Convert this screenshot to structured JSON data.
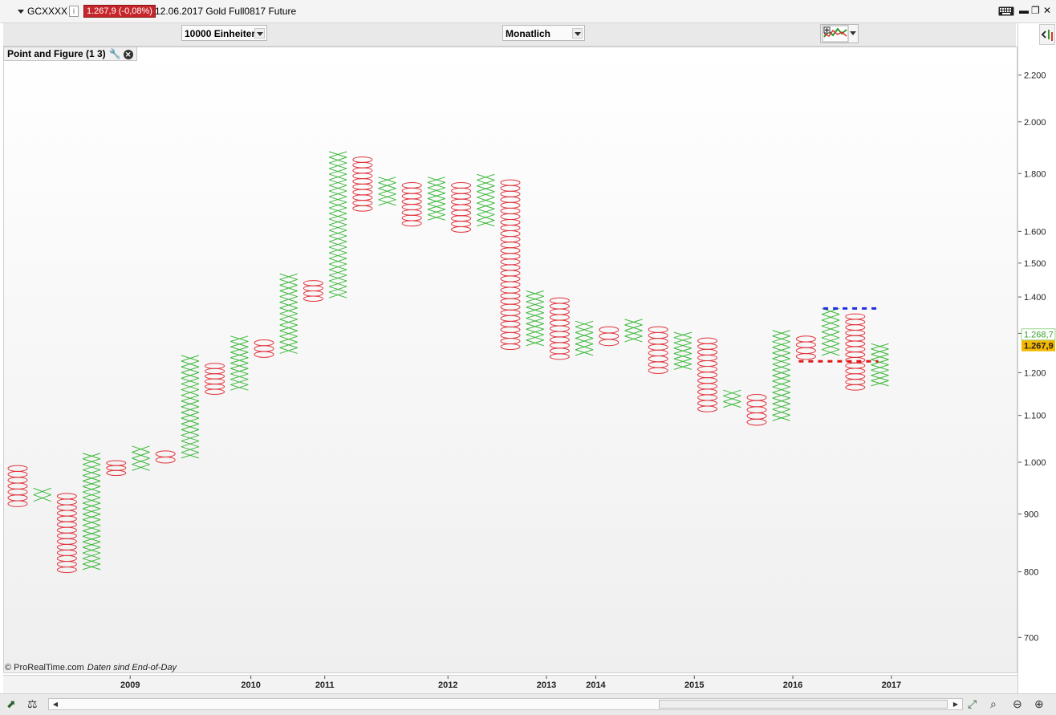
{
  "titlebar": {
    "symbol": "GCXXXX",
    "info": "i",
    "price_change": "1.267,9 (-0,08%)",
    "description": "12.06.2017 Gold Full0817 Future",
    "btn_min": "▬",
    "btn_restore": "❐",
    "btn_close": "✕"
  },
  "toolbar": {
    "units_select": "10000 Einheiten",
    "period_select": "Monatlich"
  },
  "chart_label": {
    "text": "Point and Figure (1 3)"
  },
  "footer": {
    "copyright": "© ProRealTime.com",
    "note": "Daten sind End-of-Day"
  },
  "colors": {
    "x_color": "#3cb83c",
    "o_color": "#e0323c",
    "resistance": "#1e2ee0",
    "support": "#e01818",
    "price_badge": "#f5b800",
    "last_badge": "#7ed86a"
  },
  "icons": [
    "menu-triangle-icon",
    "info-icon",
    "keyboard-icon",
    "wrench-icon",
    "close-icon",
    "indicator-icon",
    "chart-type-icon",
    "zoom-icon",
    "zoom-out-icon",
    "zoom-in-icon"
  ],
  "price_axis": {
    "labels": [
      "2.200",
      "2.000",
      "1.800",
      "1.600",
      "1.500",
      "1.400",
      "1.300",
      "1.200",
      "1.100",
      "1.000",
      "900",
      "800",
      "700"
    ],
    "last_price": "1.267,9",
    "secondary": "1.268,7"
  },
  "chart_data": {
    "type": "point-and-figure",
    "box_size": "10000 Einheiten",
    "reversal": 3,
    "period": "Monatlich",
    "scale": "log",
    "ylim": [
      650,
      2300
    ],
    "x_ticks": [
      {
        "label": "2009",
        "col": 4.6
      },
      {
        "label": "2010",
        "col": 9.5
      },
      {
        "label": "2011",
        "col": 12.5
      },
      {
        "label": "2012",
        "col": 17.5
      },
      {
        "label": "2013",
        "col": 21.5
      },
      {
        "label": "2014",
        "col": 23.5
      },
      {
        "label": "2015",
        "col": 27.5
      },
      {
        "label": "2016",
        "col": 31.5
      },
      {
        "label": "2017",
        "col": 35.5
      }
    ],
    "columns": [
      {
        "type": "O",
        "high": 995,
        "low": 915
      },
      {
        "type": "X",
        "low": 925,
        "high": 950
      },
      {
        "type": "O",
        "high": 940,
        "low": 800
      },
      {
        "type": "X",
        "low": 805,
        "high": 1020
      },
      {
        "type": "O",
        "high": 1005,
        "low": 975
      },
      {
        "type": "X",
        "low": 985,
        "high": 1035
      },
      {
        "type": "O",
        "high": 1025,
        "low": 1000
      },
      {
        "type": "X",
        "low": 1010,
        "high": 1245
      },
      {
        "type": "O",
        "high": 1225,
        "low": 1150
      },
      {
        "type": "X",
        "low": 1160,
        "high": 1295
      },
      {
        "type": "O",
        "high": 1285,
        "low": 1240
      },
      {
        "type": "X",
        "low": 1250,
        "high": 1470
      },
      {
        "type": "O",
        "high": 1450,
        "low": 1390
      },
      {
        "type": "X",
        "low": 1400,
        "high": 1885
      },
      {
        "type": "O",
        "high": 1865,
        "low": 1670
      },
      {
        "type": "X",
        "low": 1690,
        "high": 1790
      },
      {
        "type": "O",
        "high": 1770,
        "low": 1620
      },
      {
        "type": "X",
        "low": 1640,
        "high": 1790
      },
      {
        "type": "O",
        "high": 1770,
        "low": 1600
      },
      {
        "type": "X",
        "low": 1620,
        "high": 1800
      },
      {
        "type": "O",
        "high": 1780,
        "low": 1260
      },
      {
        "type": "X",
        "low": 1270,
        "high": 1420
      },
      {
        "type": "O",
        "high": 1400,
        "low": 1235
      },
      {
        "type": "X",
        "low": 1245,
        "high": 1335
      },
      {
        "type": "O",
        "high": 1320,
        "low": 1270
      },
      {
        "type": "X",
        "low": 1280,
        "high": 1340
      },
      {
        "type": "O",
        "high": 1320,
        "low": 1200
      },
      {
        "type": "X",
        "low": 1210,
        "high": 1305
      },
      {
        "type": "O",
        "high": 1290,
        "low": 1110
      },
      {
        "type": "X",
        "low": 1120,
        "high": 1160
      },
      {
        "type": "O",
        "high": 1150,
        "low": 1080
      },
      {
        "type": "X",
        "low": 1090,
        "high": 1310
      },
      {
        "type": "O",
        "high": 1295,
        "low": 1235
      },
      {
        "type": "X",
        "low": 1245,
        "high": 1370
      },
      {
        "type": "O",
        "high": 1355,
        "low": 1160
      },
      {
        "type": "X",
        "low": 1170,
        "high": 1275
      }
    ],
    "lines": [
      {
        "name": "resistance",
        "value": 1370,
        "from_col": 33,
        "to_col": 35
      },
      {
        "name": "support",
        "value": 1230,
        "from_col": 32,
        "to_col": 35
      }
    ]
  }
}
